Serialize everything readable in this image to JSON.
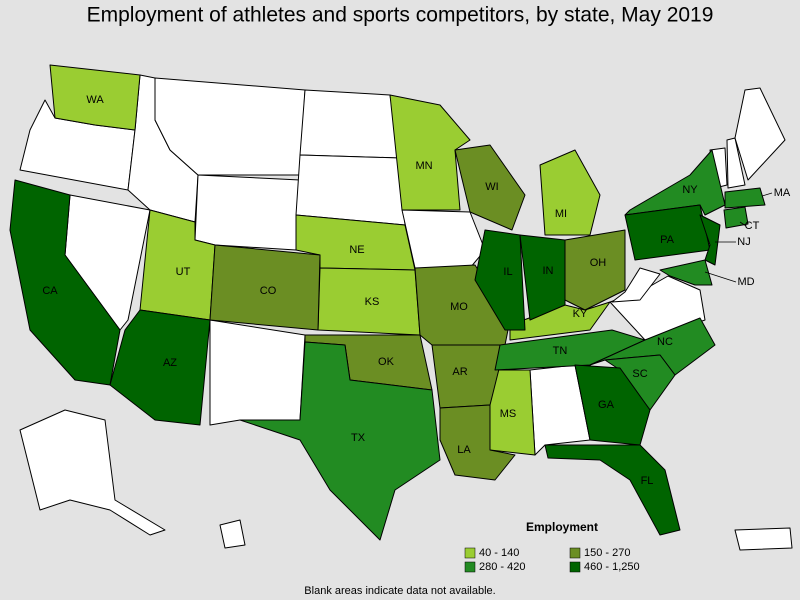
{
  "title": "Employment of athletes and sports competitors, by state, May 2019",
  "legend": {
    "title": "Employment",
    "items": [
      {
        "label": "40 - 140",
        "color": "#9acd32"
      },
      {
        "label": "150 - 270",
        "color": "#6b8e23"
      },
      {
        "label": "280 - 420",
        "color": "#228b22"
      },
      {
        "label": "460 - 1,250",
        "color": "#006400"
      }
    ]
  },
  "note": "Blank areas indicate data not available.",
  "states": [
    {
      "abbr": "WA",
      "level": 0
    },
    {
      "abbr": "MN",
      "level": 0
    },
    {
      "abbr": "NE",
      "level": 0
    },
    {
      "abbr": "KS",
      "level": 0
    },
    {
      "abbr": "UT",
      "level": 0
    },
    {
      "abbr": "MI",
      "level": 0
    },
    {
      "abbr": "KY",
      "level": 0
    },
    {
      "abbr": "MS",
      "level": 0
    },
    {
      "abbr": "WI",
      "level": 1
    },
    {
      "abbr": "CO",
      "level": 1
    },
    {
      "abbr": "MO",
      "level": 1
    },
    {
      "abbr": "OK",
      "level": 1
    },
    {
      "abbr": "AR",
      "level": 1
    },
    {
      "abbr": "LA",
      "level": 1
    },
    {
      "abbr": "OH",
      "level": 1
    },
    {
      "abbr": "NY",
      "level": 2
    },
    {
      "abbr": "MA",
      "level": 2
    },
    {
      "abbr": "CT",
      "level": 2
    },
    {
      "abbr": "TX",
      "level": 2
    },
    {
      "abbr": "TN",
      "level": 2
    },
    {
      "abbr": "NC",
      "level": 2
    },
    {
      "abbr": "SC",
      "level": 2
    },
    {
      "abbr": "MD",
      "level": 2
    },
    {
      "abbr": "CA",
      "level": 3
    },
    {
      "abbr": "AZ",
      "level": 3
    },
    {
      "abbr": "IL",
      "level": 3
    },
    {
      "abbr": "IN",
      "level": 3
    },
    {
      "abbr": "GA",
      "level": 3
    },
    {
      "abbr": "FL",
      "level": 3
    },
    {
      "abbr": "PA",
      "level": 3
    },
    {
      "abbr": "NJ",
      "level": 3
    }
  ]
}
